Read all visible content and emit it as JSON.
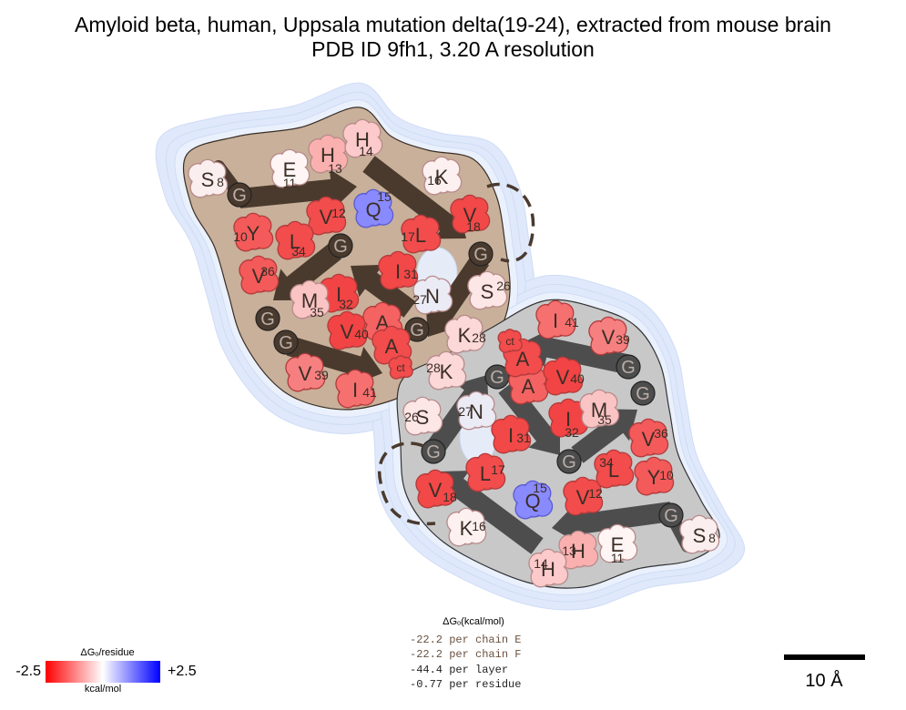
{
  "title": {
    "line1": "Amyloid beta, human, Uppsala mutation delta(19-24), extracted from mouse brain",
    "line2": "PDB ID 9fh1, 3.20 A resolution"
  },
  "legend": {
    "title": "ΔGₒ/residue",
    "min_label": "-2.5",
    "max_label": "+2.5",
    "unit": "kcal/mol",
    "colors": {
      "negative": "#ff0000",
      "neutral": "#ffffff",
      "positive": "#0000ff"
    }
  },
  "energy": {
    "header": "ΔGₒ(kcal/mol)",
    "lines": [
      "-22.2 per chain E",
      "-22.2 per chain F",
      "-44.4 per layer",
      "-0.77 per residue"
    ]
  },
  "scale_bar": {
    "label": "10 Å"
  },
  "chain_colors": {
    "chain_e": "#c8b09a",
    "chain_f": "#c8c8c8",
    "halo": "#dfe9fb",
    "arrow_e": "#4a3a2e",
    "arrow_f": "#4d4d4d"
  },
  "residues": [
    {
      "id": "e-s8",
      "aa": "S",
      "num": "8",
      "color": "#fbeeee",
      "chain": "E"
    },
    {
      "id": "e-g9",
      "aa": "G",
      "num": "",
      "color": "#4a3a2e",
      "chain": "E"
    },
    {
      "id": "e-y10",
      "aa": "Y",
      "num": "10",
      "color": "#f45a5a",
      "chain": "E"
    },
    {
      "id": "e-e11",
      "aa": "E",
      "num": "11",
      "color": "#fff5f5",
      "chain": "E"
    },
    {
      "id": "e-v12",
      "aa": "V",
      "num": "12",
      "color": "#f24c4c",
      "chain": "E"
    },
    {
      "id": "e-h13",
      "aa": "H",
      "num": "13",
      "color": "#fbb0b0",
      "chain": "E"
    },
    {
      "id": "e-h14",
      "aa": "H",
      "num": "14",
      "color": "#fccaca",
      "chain": "E"
    },
    {
      "id": "e-q15",
      "aa": "Q",
      "num": "15",
      "color": "#8a8aff",
      "chain": "E"
    },
    {
      "id": "e-k16",
      "aa": "K",
      "num": "16",
      "color": "#fdf0f0",
      "chain": "E"
    },
    {
      "id": "e-l17",
      "aa": "L",
      "num": "17",
      "color": "#f24c4c",
      "chain": "E"
    },
    {
      "id": "e-v18",
      "aa": "V",
      "num": "18",
      "color": "#f24848",
      "chain": "E"
    },
    {
      "id": "e-g25",
      "aa": "G",
      "num": "",
      "color": "#4a3a2e",
      "chain": "E"
    },
    {
      "id": "e-s26",
      "aa": "S",
      "num": "26",
      "color": "#fde6e6",
      "chain": "E"
    },
    {
      "id": "e-n27",
      "aa": "N",
      "num": "27",
      "color": "#ebebf6",
      "chain": "E"
    },
    {
      "id": "e-k28",
      "aa": "K",
      "num": "28",
      "color": "#fcd8d8",
      "chain": "E"
    },
    {
      "id": "e-g29",
      "aa": "G",
      "num": "",
      "color": "#4a3a2e",
      "chain": "E"
    },
    {
      "id": "e-a30",
      "aa": "A",
      "num": "",
      "color": "#f46262",
      "chain": "E"
    },
    {
      "id": "e-i31",
      "aa": "I",
      "num": "31",
      "color": "#f24848",
      "chain": "E"
    },
    {
      "id": "e-i32",
      "aa": "I",
      "num": "32",
      "color": "#f24444",
      "chain": "E"
    },
    {
      "id": "e-g33",
      "aa": "G",
      "num": "",
      "color": "#4a3a2e",
      "chain": "E"
    },
    {
      "id": "e-l34",
      "aa": "L",
      "num": "34",
      "color": "#f24c4c",
      "chain": "E"
    },
    {
      "id": "e-m35",
      "aa": "M",
      "num": "35",
      "color": "#fbc4c4",
      "chain": "E"
    },
    {
      "id": "e-v36",
      "aa": "V",
      "num": "36",
      "color": "#f45a5a",
      "chain": "E"
    },
    {
      "id": "e-g37",
      "aa": "G",
      "num": "",
      "color": "#4a3a2e",
      "chain": "E"
    },
    {
      "id": "e-g38",
      "aa": "G",
      "num": "",
      "color": "#4a3a2e",
      "chain": "E"
    },
    {
      "id": "e-v39",
      "aa": "V",
      "num": "39",
      "color": "#f68080",
      "chain": "E"
    },
    {
      "id": "e-v40",
      "aa": "V",
      "num": "40",
      "color": "#f24444",
      "chain": "E"
    },
    {
      "id": "e-i41",
      "aa": "I",
      "num": "41",
      "color": "#f67070",
      "chain": "E"
    },
    {
      "id": "e-a42",
      "aa": "A",
      "num": "",
      "color": "#f24c4c",
      "chain": "E"
    },
    {
      "id": "e-ct",
      "aa": "",
      "num": "ct",
      "color": "#f24c4c",
      "chain": "E"
    },
    {
      "id": "f-s8",
      "aa": "S",
      "num": "8",
      "color": "#fbeeee",
      "chain": "F"
    },
    {
      "id": "f-g9",
      "aa": "G",
      "num": "",
      "color": "#4d4d4d",
      "chain": "F"
    },
    {
      "id": "f-y10",
      "aa": "Y",
      "num": "10",
      "color": "#f45a5a",
      "chain": "F"
    },
    {
      "id": "f-e11",
      "aa": "E",
      "num": "11",
      "color": "#fff5f5",
      "chain": "F"
    },
    {
      "id": "f-v12",
      "aa": "V",
      "num": "12",
      "color": "#f24c4c",
      "chain": "F"
    },
    {
      "id": "f-h13",
      "aa": "H",
      "num": "13",
      "color": "#fbb0b0",
      "chain": "F"
    },
    {
      "id": "f-h14",
      "aa": "H",
      "num": "14",
      "color": "#fccaca",
      "chain": "F"
    },
    {
      "id": "f-q15",
      "aa": "Q",
      "num": "15",
      "color": "#8a8aff",
      "chain": "F"
    },
    {
      "id": "f-k16",
      "aa": "K",
      "num": "16",
      "color": "#fdf0f0",
      "chain": "F"
    },
    {
      "id": "f-l17",
      "aa": "L",
      "num": "17",
      "color": "#f24c4c",
      "chain": "F"
    },
    {
      "id": "f-v18",
      "aa": "V",
      "num": "18",
      "color": "#f24848",
      "chain": "F"
    },
    {
      "id": "f-g25",
      "aa": "G",
      "num": "",
      "color": "#4d4d4d",
      "chain": "F"
    },
    {
      "id": "f-s26",
      "aa": "S",
      "num": "26",
      "color": "#fde6e6",
      "chain": "F"
    },
    {
      "id": "f-n27",
      "aa": "N",
      "num": "27",
      "color": "#ebebf6",
      "chain": "F"
    },
    {
      "id": "f-k28",
      "aa": "K",
      "num": "28",
      "color": "#fcd8d8",
      "chain": "F"
    },
    {
      "id": "f-g29",
      "aa": "G",
      "num": "",
      "color": "#4d4d4d",
      "chain": "F"
    },
    {
      "id": "f-a30",
      "aa": "A",
      "num": "",
      "color": "#f46262",
      "chain": "F"
    },
    {
      "id": "f-i31",
      "aa": "I",
      "num": "31",
      "color": "#f24848",
      "chain": "F"
    },
    {
      "id": "f-i32",
      "aa": "I",
      "num": "32",
      "color": "#f24444",
      "chain": "F"
    },
    {
      "id": "f-g33",
      "aa": "G",
      "num": "",
      "color": "#4d4d4d",
      "chain": "F"
    },
    {
      "id": "f-l34",
      "aa": "L",
      "num": "34",
      "color": "#f24c4c",
      "chain": "F"
    },
    {
      "id": "f-m35",
      "aa": "M",
      "num": "35",
      "color": "#fbc4c4",
      "chain": "F"
    },
    {
      "id": "f-v36",
      "aa": "V",
      "num": "36",
      "color": "#f45a5a",
      "chain": "F"
    },
    {
      "id": "f-g37",
      "aa": "G",
      "num": "",
      "color": "#4d4d4d",
      "chain": "F"
    },
    {
      "id": "f-g38",
      "aa": "G",
      "num": "",
      "color": "#4d4d4d",
      "chain": "F"
    },
    {
      "id": "f-v39",
      "aa": "V",
      "num": "39",
      "color": "#f68080",
      "chain": "F"
    },
    {
      "id": "f-v40",
      "aa": "V",
      "num": "40",
      "color": "#f24444",
      "chain": "F"
    },
    {
      "id": "f-i41",
      "aa": "I",
      "num": "41",
      "color": "#f67070",
      "chain": "F"
    },
    {
      "id": "f-a42",
      "aa": "A",
      "num": "",
      "color": "#f24c4c",
      "chain": "F"
    },
    {
      "id": "f-ct",
      "aa": "",
      "num": "ct",
      "color": "#f24c4c",
      "chain": "F"
    }
  ]
}
